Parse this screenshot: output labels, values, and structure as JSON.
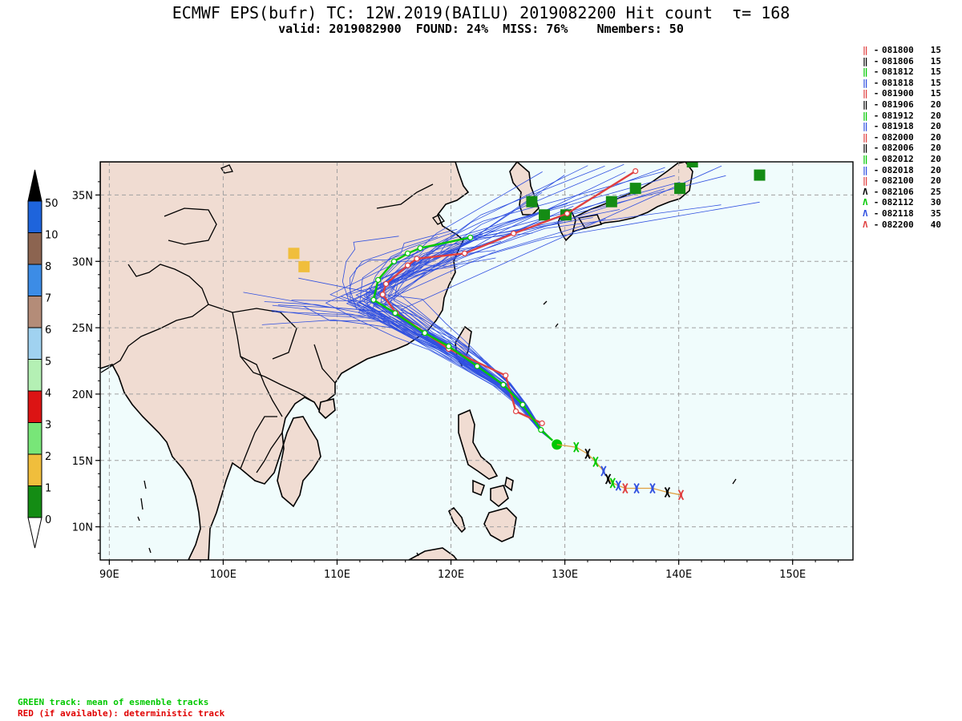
{
  "title": "ECMWF EPS(bufr) TC: 12W.2019(BAILU) 2019082200 Hit count  τ= 168",
  "subtitle": "valid: 2019082900  FOUND: 24%  MISS: 76%    Nmembers: 50",
  "legend": [
    {
      "symbol": "‖",
      "color": "#e04040",
      "date": "081800",
      "count": "15"
    },
    {
      "symbol": "‖",
      "color": "#000000",
      "date": "081806",
      "count": "15"
    },
    {
      "symbol": "‖",
      "color": "#00c800",
      "date": "081812",
      "count": "15"
    },
    {
      "symbol": "‖",
      "color": "#3050e0",
      "date": "081818",
      "count": "15"
    },
    {
      "symbol": "‖",
      "color": "#e04040",
      "date": "081900",
      "count": "15"
    },
    {
      "symbol": "‖",
      "color": "#000000",
      "date": "081906",
      "count": "20"
    },
    {
      "symbol": "‖",
      "color": "#00c800",
      "date": "081912",
      "count": "20"
    },
    {
      "symbol": "‖",
      "color": "#3050e0",
      "date": "081918",
      "count": "20"
    },
    {
      "symbol": "‖",
      "color": "#e04040",
      "date": "082000",
      "count": "20"
    },
    {
      "symbol": "‖",
      "color": "#000000",
      "date": "082006",
      "count": "20"
    },
    {
      "symbol": "‖",
      "color": "#00c800",
      "date": "082012",
      "count": "20"
    },
    {
      "symbol": "‖",
      "color": "#3050e0",
      "date": "082018",
      "count": "20"
    },
    {
      "symbol": "‖",
      "color": "#e04040",
      "date": "082100",
      "count": "20"
    },
    {
      "symbol": "Ʌ",
      "color": "#000000",
      "date": "082106",
      "count": "25"
    },
    {
      "symbol": "Ʌ",
      "color": "#00c800",
      "date": "082112",
      "count": "30"
    },
    {
      "symbol": "Ʌ",
      "color": "#3050e0",
      "date": "082118",
      "count": "35"
    },
    {
      "symbol": "Ʌ",
      "color": "#e04040",
      "date": "082200",
      "count": "40"
    }
  ],
  "colorbar": {
    "labels": [
      "50",
      "10",
      "8",
      "7",
      "6",
      "5",
      "4",
      "3",
      "2",
      "1",
      "0"
    ],
    "colors": [
      "#1e64dc",
      "#8c6450",
      "#3c8ce6",
      "#b48c78",
      "#a0d2f0",
      "#b4f0b4",
      "#dc1414",
      "#78e678",
      "#f0be3c",
      "#148c14",
      "#ffffff"
    ]
  },
  "map": {
    "lon_labels": [
      "90E",
      "100E",
      "110E",
      "120E",
      "130E",
      "140E",
      "150E"
    ],
    "lat_labels": [
      "35N",
      "30N",
      "25N",
      "20N",
      "15N",
      "10N"
    ],
    "lon_range": [
      89.2,
      155.3
    ],
    "lat_range": [
      7.5,
      37.5
    ],
    "ocean_color": "#f0fcfc",
    "land_color": "#f0dcd2",
    "deterministic_track": [
      [
        136.2,
        36.8
      ],
      [
        130.2,
        33.6
      ],
      [
        125.5,
        32.1
      ],
      [
        121.2,
        30.6
      ],
      [
        117.0,
        30.2
      ],
      [
        116.2,
        29.7
      ],
      [
        114.3,
        28.3
      ],
      [
        114.0,
        27.5
      ],
      [
        115.2,
        26.1
      ],
      [
        119.8,
        23.4
      ],
      [
        124.8,
        21.4
      ],
      [
        125.7,
        18.7
      ],
      [
        128.0,
        17.8
      ]
    ],
    "mean_track": [
      [
        121.7,
        31.8
      ],
      [
        117.3,
        31.0
      ],
      [
        116.2,
        30.6
      ],
      [
        115.0,
        30.0
      ],
      [
        113.6,
        28.6
      ],
      [
        113.2,
        27.1
      ],
      [
        115.1,
        26.1
      ],
      [
        117.7,
        24.6
      ],
      [
        119.8,
        23.6
      ],
      [
        122.3,
        22.1
      ],
      [
        124.6,
        20.7
      ],
      [
        126.3,
        19.2
      ],
      [
        127.9,
        17.3
      ],
      [
        129.3,
        16.2
      ]
    ],
    "best_track_markers": [
      {
        "lon": 131.0,
        "lat": 16.0,
        "color": "#00c800"
      },
      {
        "lon": 132.0,
        "lat": 15.5,
        "color": "#000000"
      },
      {
        "lon": 132.7,
        "lat": 14.9,
        "color": "#00c800"
      },
      {
        "lon": 133.4,
        "lat": 14.2,
        "color": "#3050e0"
      },
      {
        "lon": 133.8,
        "lat": 13.6,
        "color": "#000000"
      },
      {
        "lon": 134.2,
        "lat": 13.3,
        "color": "#00c800"
      },
      {
        "lon": 134.7,
        "lat": 13.1,
        "color": "#3050e0"
      },
      {
        "lon": 135.3,
        "lat": 12.9,
        "color": "#e04040"
      },
      {
        "lon": 136.3,
        "lat": 12.9,
        "color": "#3050e0"
      },
      {
        "lon": 137.7,
        "lat": 12.9,
        "color": "#3050e0"
      },
      {
        "lon": 139.0,
        "lat": 12.6,
        "color": "#000000"
      },
      {
        "lon": 140.2,
        "lat": 12.4,
        "color": "#e04040"
      }
    ],
    "hit_cells": [
      {
        "lon": 127.1,
        "lat": 34.5,
        "color": "#148c14"
      },
      {
        "lon": 128.2,
        "lat": 33.5,
        "color": "#148c14"
      },
      {
        "lon": 130.1,
        "lat": 33.5,
        "color": "#148c14"
      },
      {
        "lon": 134.1,
        "lat": 34.5,
        "color": "#148c14"
      },
      {
        "lon": 136.2,
        "lat": 35.5,
        "color": "#148c14"
      },
      {
        "lon": 140.1,
        "lat": 35.5,
        "color": "#148c14"
      },
      {
        "lon": 141.2,
        "lat": 37.5,
        "color": "#148c14"
      },
      {
        "lon": 147.1,
        "lat": 36.5,
        "color": "#148c14"
      },
      {
        "lon": 106.2,
        "lat": 30.6,
        "color": "#f0be3c"
      },
      {
        "lon": 107.1,
        "lat": 29.6,
        "color": "#f0be3c"
      }
    ]
  },
  "footer": {
    "green_note": "GREEN track: mean of esmenble tracks",
    "red_note": "RED (if available): deterministic track"
  }
}
